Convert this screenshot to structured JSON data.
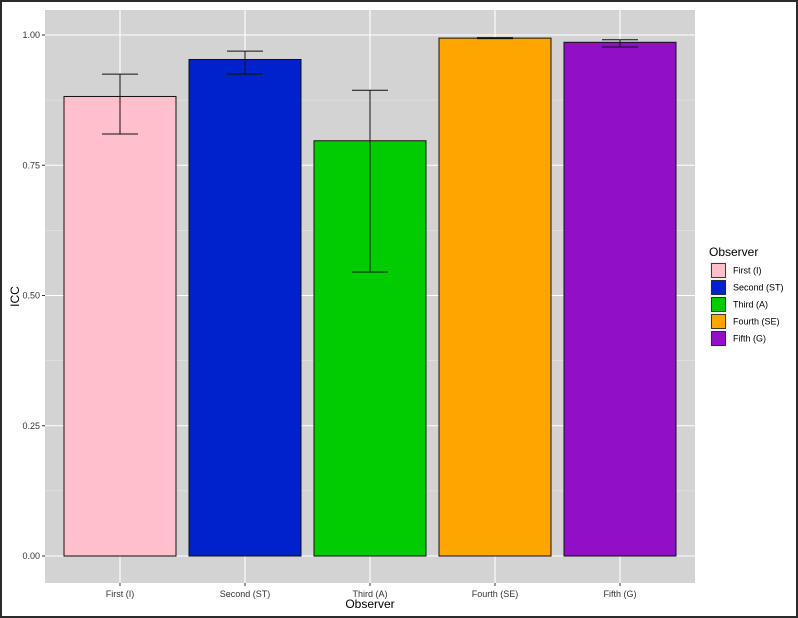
{
  "chart_data": {
    "type": "bar",
    "categories": [
      "First (I)",
      "Second (ST)",
      "Third (A)",
      "Fourth (SE)",
      "Fifth (G)"
    ],
    "values": [
      0.882,
      0.953,
      0.797,
      0.994,
      0.986
    ],
    "error_bars": [
      {
        "lower": 0.81,
        "upper": 0.925
      },
      {
        "lower": 0.925,
        "upper": 0.969
      },
      {
        "lower": 0.545,
        "upper": 0.894
      },
      {
        "lower": 0.993,
        "upper": 0.995
      },
      {
        "lower": 0.977,
        "upper": 0.991
      }
    ],
    "colors": [
      "#ffc0cb",
      "#0022cc",
      "#00cc00",
      "#ffa500",
      "#9010c8"
    ],
    "title": "",
    "xlabel": "Observer",
    "ylabel": "ICC",
    "ylim": [
      0,
      1
    ],
    "yticks": [
      "0.00",
      "0.25",
      "0.50",
      "0.75",
      "1.00"
    ],
    "grid": true,
    "legend": {
      "title": "Observer",
      "position": "right",
      "entries": [
        "First (I)",
        "Second (ST)",
        "Third (A)",
        "Fourth (SE)",
        "Fifth (G)"
      ]
    }
  }
}
